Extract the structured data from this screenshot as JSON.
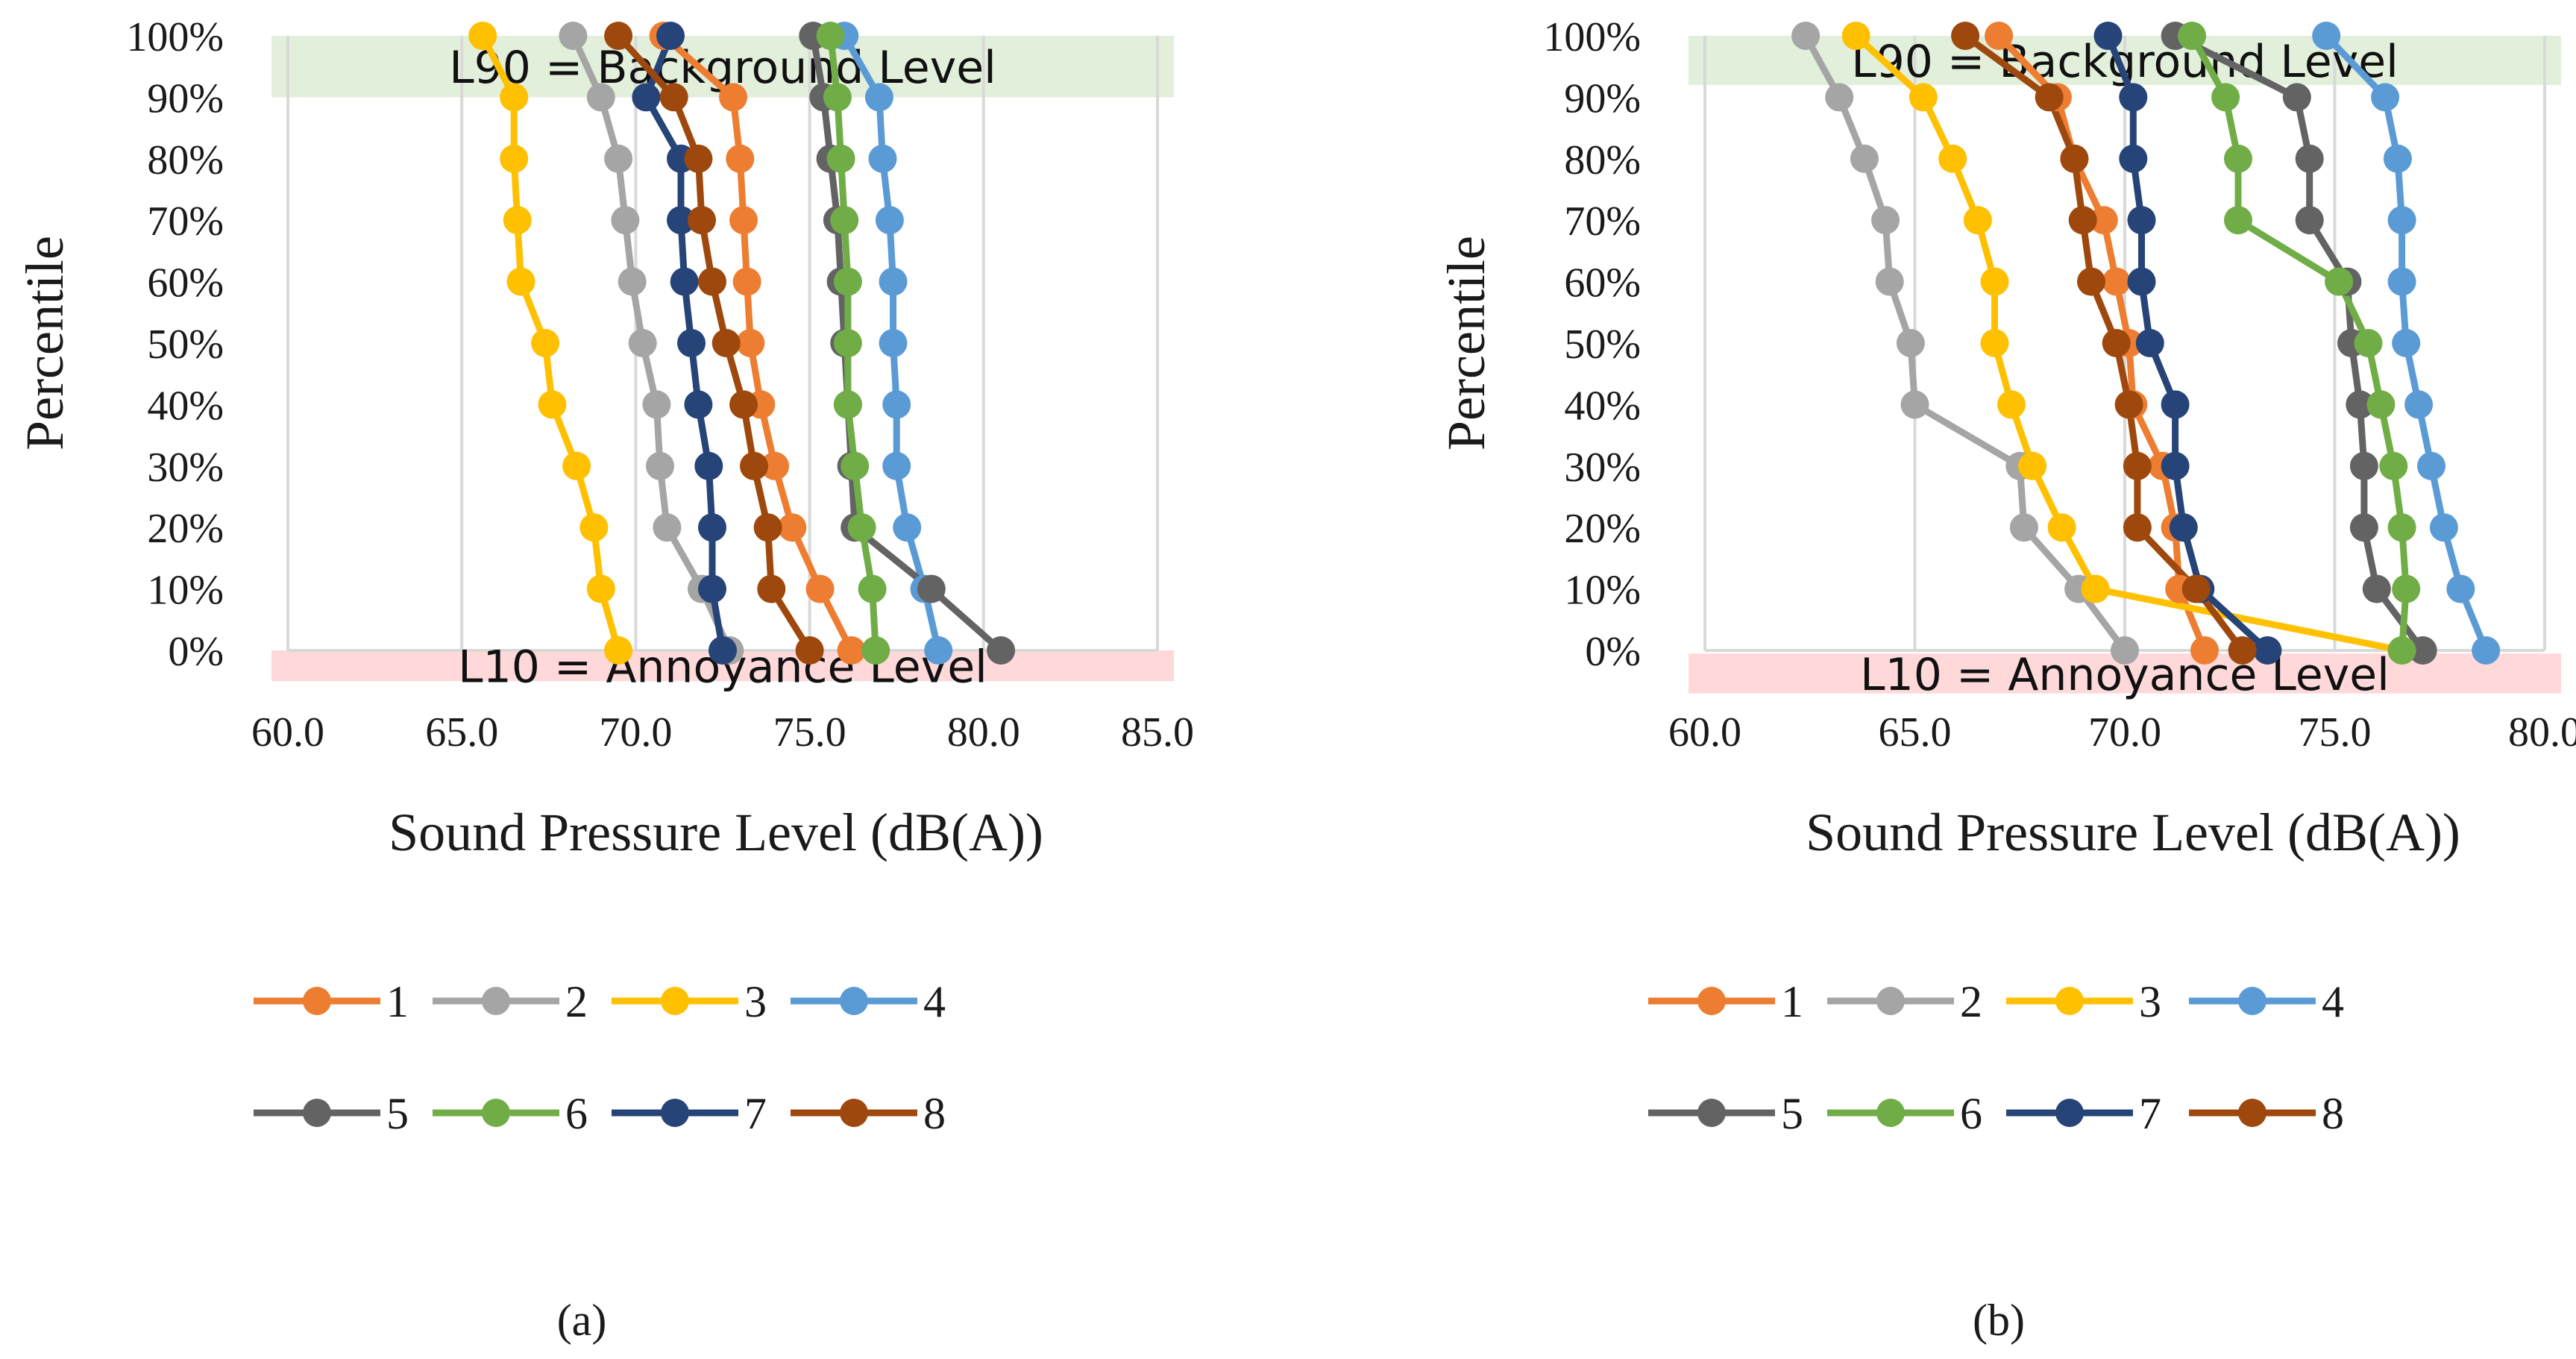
{
  "chart_data": [
    {
      "type": "line",
      "panel_label": "(a)",
      "xlabel": "Sound Pressure Level (dB(A))",
      "ylabel": "Percentile",
      "xlim": [
        60.0,
        85.0
      ],
      "xticks": [
        "60.0",
        "65.0",
        "70.0",
        "75.0",
        "80.0",
        "85.0"
      ],
      "xtick_values": [
        60,
        65,
        70,
        75,
        80,
        85
      ],
      "ylim": [
        0,
        100
      ],
      "yticks": [
        "0%",
        "10%",
        "20%",
        "30%",
        "40%",
        "50%",
        "60%",
        "70%",
        "80%",
        "90%",
        "100%"
      ],
      "ytick_values": [
        0,
        10,
        20,
        30,
        40,
        50,
        60,
        70,
        80,
        90,
        100
      ],
      "grid": "vertical",
      "bands": [
        {
          "label": "L90 = Background Level",
          "y_from": 90,
          "y_to": 100,
          "color": "#e2efda"
        },
        {
          "label": "L10 = Annoyance Level",
          "y_from": -5,
          "y_to": 0,
          "color": "#ffd9d9"
        }
      ],
      "series": [
        {
          "name": "1",
          "color": "#ed7d31",
          "x": [
            76.2,
            75.3,
            74.5,
            74.0,
            73.6,
            73.3,
            73.2,
            73.1,
            73.0,
            72.8,
            70.8
          ],
          "y": [
            0,
            10,
            20,
            30,
            40,
            50,
            60,
            70,
            80,
            90,
            100
          ]
        },
        {
          "name": "2",
          "color": "#a5a5a5",
          "x": [
            72.7,
            71.9,
            70.9,
            70.7,
            70.6,
            70.2,
            69.9,
            69.7,
            69.5,
            69.0,
            68.2
          ],
          "y": [
            0,
            10,
            20,
            30,
            40,
            50,
            60,
            70,
            80,
            90,
            100
          ]
        },
        {
          "name": "3",
          "color": "#ffc000",
          "x": [
            69.5,
            69.0,
            68.8,
            68.3,
            67.6,
            67.4,
            66.7,
            66.6,
            66.5,
            66.5,
            65.6
          ],
          "y": [
            0,
            10,
            20,
            30,
            40,
            50,
            60,
            70,
            80,
            90,
            100
          ]
        },
        {
          "name": "4",
          "color": "#5b9bd5",
          "x": [
            78.7,
            78.3,
            77.8,
            77.5,
            77.5,
            77.4,
            77.4,
            77.3,
            77.1,
            77.0,
            76.0
          ],
          "y": [
            0,
            10,
            20,
            30,
            40,
            50,
            60,
            70,
            80,
            90,
            100
          ]
        },
        {
          "name": "5",
          "color": "#636363",
          "x": [
            80.5,
            78.5,
            76.3,
            76.2,
            76.1,
            76.0,
            75.9,
            75.8,
            75.6,
            75.4,
            75.1
          ],
          "y": [
            0,
            10,
            20,
            30,
            40,
            50,
            60,
            70,
            80,
            90,
            100
          ]
        },
        {
          "name": "6",
          "color": "#70ad47",
          "x": [
            76.9,
            76.8,
            76.5,
            76.3,
            76.1,
            76.1,
            76.1,
            76.0,
            75.9,
            75.8,
            75.6
          ],
          "y": [
            0,
            10,
            20,
            30,
            40,
            50,
            60,
            70,
            80,
            90,
            100
          ]
        },
        {
          "name": "7",
          "color": "#264478",
          "x": [
            72.5,
            72.2,
            72.2,
            72.1,
            71.8,
            71.6,
            71.4,
            71.3,
            71.3,
            70.3,
            71.0
          ],
          "y": [
            0,
            10,
            20,
            30,
            40,
            50,
            60,
            70,
            80,
            90,
            100
          ]
        },
        {
          "name": "8",
          "color": "#9e480e",
          "x": [
            75.0,
            73.9,
            73.8,
            73.4,
            73.1,
            72.6,
            72.2,
            71.9,
            71.8,
            71.1,
            69.5
          ],
          "y": [
            0,
            10,
            20,
            30,
            40,
            50,
            60,
            70,
            80,
            90,
            100
          ]
        }
      ]
    },
    {
      "type": "line",
      "panel_label": "(b)",
      "xlabel": "Sound Pressure Level (dB(A))",
      "ylabel": "Percentile",
      "xlim": [
        60.0,
        80.0
      ],
      "xticks": [
        "60.0",
        "65.0",
        "70.0",
        "75.0",
        "80.0"
      ],
      "xtick_values": [
        60,
        65,
        70,
        75,
        80
      ],
      "ylim": [
        0,
        100
      ],
      "yticks": [
        "0%",
        "10%",
        "20%",
        "30%",
        "40%",
        "50%",
        "60%",
        "70%",
        "80%",
        "90%",
        "100%"
      ],
      "ytick_values": [
        0,
        10,
        20,
        30,
        40,
        50,
        60,
        70,
        80,
        90,
        100
      ],
      "grid": "vertical",
      "bands": [
        {
          "label": "L90 = Background Level",
          "y_from": 92,
          "y_to": 100,
          "color": "#e2efda"
        },
        {
          "label": "L10 = Annoyance Level",
          "y_from": -7,
          "y_to": -0.5,
          "color": "#ffd9d9"
        }
      ],
      "series": [
        {
          "name": "1",
          "color": "#ed7d31",
          "x": [
            71.9,
            71.3,
            71.2,
            70.9,
            70.2,
            70.1,
            69.8,
            69.5,
            68.8,
            68.4,
            67.0
          ],
          "y": [
            0,
            10,
            20,
            30,
            40,
            50,
            60,
            70,
            80,
            90,
            100
          ]
        },
        {
          "name": "2",
          "color": "#a5a5a5",
          "x": [
            70.0,
            68.9,
            67.6,
            67.5,
            65.0,
            64.9,
            64.4,
            64.3,
            63.8,
            63.2,
            62.4
          ],
          "y": [
            0,
            10,
            20,
            30,
            40,
            50,
            60,
            70,
            80,
            90,
            100
          ]
        },
        {
          "name": "3",
          "color": "#ffc000",
          "x": [
            76.6,
            69.3,
            68.5,
            67.8,
            67.3,
            66.9,
            66.9,
            66.5,
            65.9,
            65.2,
            63.6
          ],
          "y": [
            0,
            10,
            20,
            30,
            40,
            50,
            60,
            70,
            80,
            90,
            100
          ]
        },
        {
          "name": "4",
          "color": "#5b9bd5",
          "x": [
            78.6,
            78.0,
            77.6,
            77.3,
            77.0,
            76.7,
            76.6,
            76.6,
            76.5,
            76.2,
            74.8
          ],
          "y": [
            0,
            10,
            20,
            30,
            40,
            50,
            60,
            70,
            80,
            90,
            100
          ]
        },
        {
          "name": "5",
          "color": "#636363",
          "x": [
            77.1,
            76.0,
            75.7,
            75.7,
            75.6,
            75.4,
            75.3,
            74.4,
            74.4,
            74.1,
            71.2
          ],
          "y": [
            0,
            10,
            20,
            30,
            40,
            50,
            60,
            70,
            80,
            90,
            100
          ]
        },
        {
          "name": "6",
          "color": "#70ad47",
          "x": [
            76.6,
            76.7,
            76.6,
            76.4,
            76.1,
            75.8,
            75.1,
            72.7,
            72.7,
            72.4,
            71.6
          ],
          "y": [
            0,
            10,
            20,
            30,
            40,
            50,
            60,
            70,
            80,
            90,
            100
          ]
        },
        {
          "name": "7",
          "color": "#264478",
          "x": [
            73.4,
            71.8,
            71.4,
            71.2,
            71.2,
            70.6,
            70.4,
            70.4,
            70.2,
            70.2,
            69.6
          ],
          "y": [
            0,
            10,
            20,
            30,
            40,
            50,
            60,
            70,
            80,
            90,
            100
          ]
        },
        {
          "name": "8",
          "color": "#9e480e",
          "x": [
            72.8,
            71.7,
            70.3,
            70.3,
            70.1,
            69.8,
            69.2,
            69.0,
            68.8,
            68.2,
            66.2
          ],
          "y": [
            0,
            10,
            20,
            30,
            40,
            50,
            60,
            70,
            80,
            90,
            100
          ]
        }
      ]
    }
  ]
}
